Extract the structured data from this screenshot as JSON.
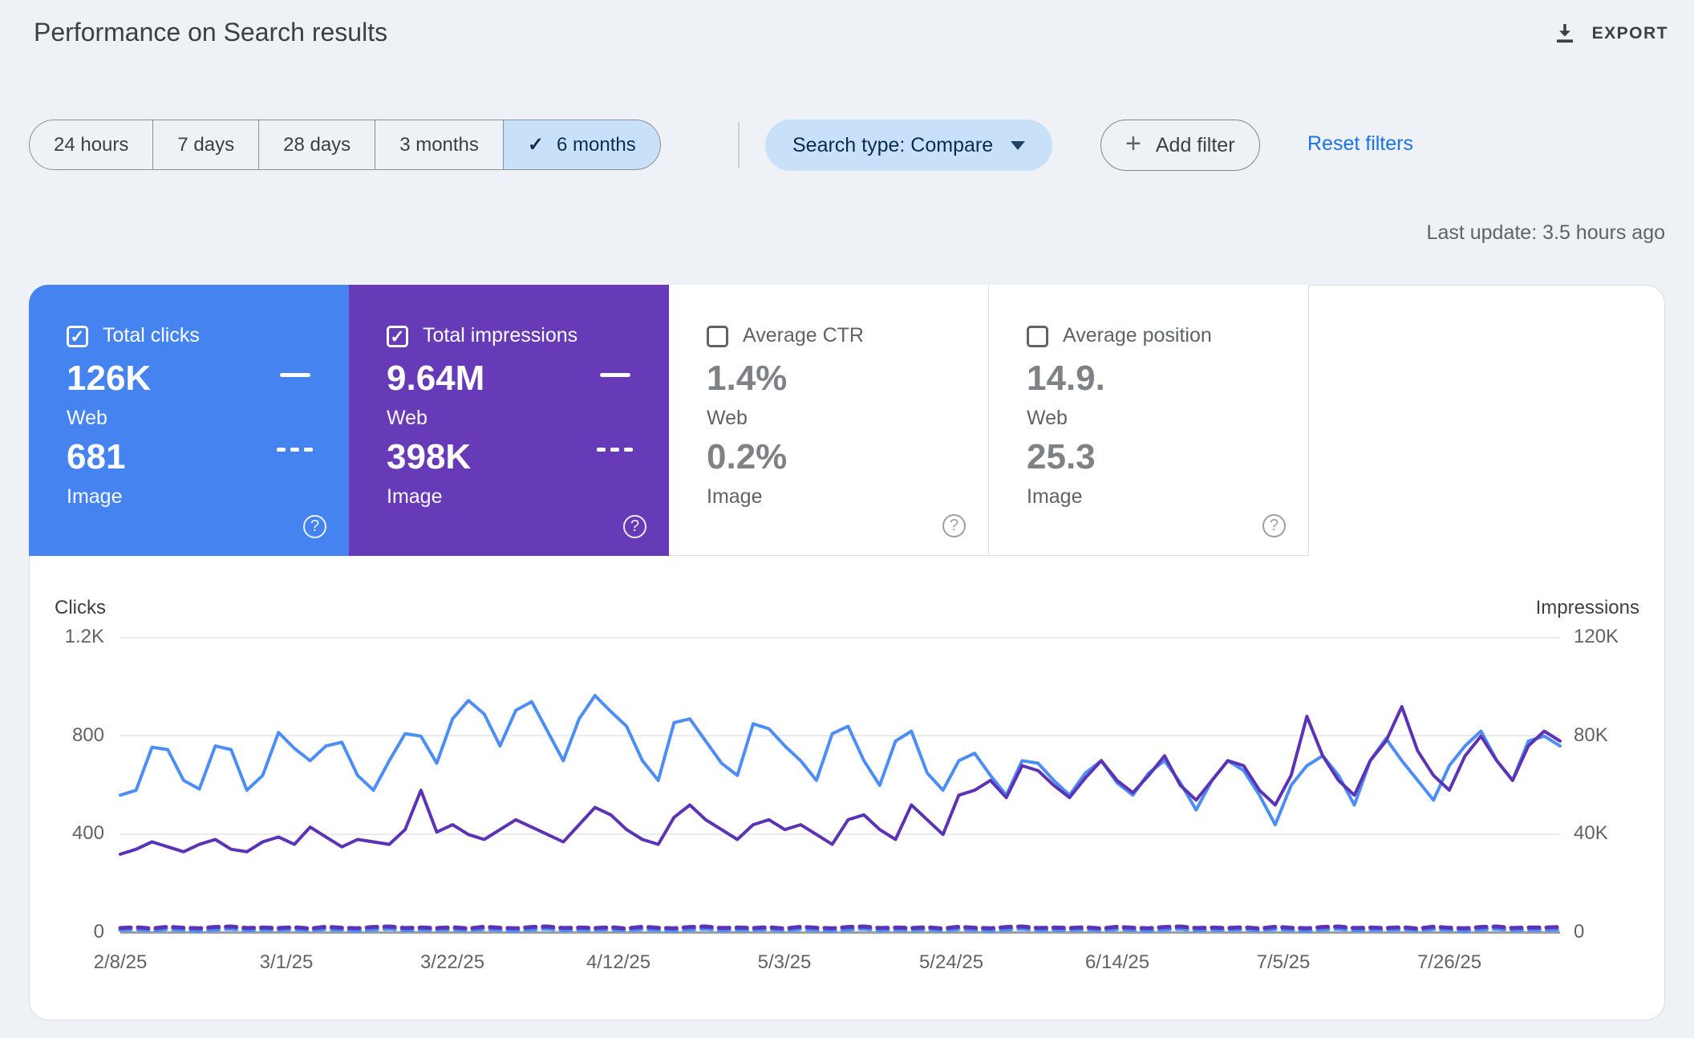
{
  "header": {
    "title": "Performance on Search results",
    "export_label": "EXPORT"
  },
  "filters": {
    "date_chips": [
      {
        "label": "24 hours",
        "selected": false
      },
      {
        "label": "7 days",
        "selected": false
      },
      {
        "label": "28 days",
        "selected": false
      },
      {
        "label": "3 months",
        "selected": false
      },
      {
        "label": "6 months",
        "selected": true
      }
    ],
    "selected_checkmark": "✓",
    "search_type_label": "Search type: Compare",
    "add_filter_label": "Add filter",
    "reset_filters_label": "Reset filters"
  },
  "status": {
    "last_update": "Last update: 3.5 hours ago"
  },
  "cards": [
    {
      "label": "Total clicks",
      "checked": true,
      "value_web": "126K",
      "sub_web": "Web",
      "value_image": "681",
      "sub_image": "Image",
      "bg": "#4584F0"
    },
    {
      "label": "Total impressions",
      "checked": true,
      "value_web": "9.64M",
      "sub_web": "Web",
      "value_image": "398K",
      "sub_image": "Image",
      "bg": "#673AB7"
    },
    {
      "label": "Average CTR",
      "checked": false,
      "value_web": "1.4%",
      "sub_web": "Web",
      "value_image": "0.2%",
      "sub_image": "Image",
      "bg": "#FFFFFF"
    },
    {
      "label": "Average position",
      "checked": false,
      "value_web": "14.9.",
      "sub_web": "Web",
      "value_image": "25.3",
      "sub_image": "Image",
      "bg": "#FFFFFF"
    }
  ],
  "chart_data": {
    "type": "line",
    "left_axis": {
      "title": "Clicks",
      "ticks": [
        "1.2K",
        "800",
        "400",
        "0"
      ],
      "range": [
        0,
        1200
      ]
    },
    "right_axis": {
      "title": "Impressions",
      "ticks": [
        "120K",
        "80K",
        "40K",
        "0"
      ],
      "range": [
        0,
        120
      ],
      "unit": "K"
    },
    "x_ticks": [
      "2/8/25",
      "3/1/25",
      "3/22/25",
      "4/12/25",
      "5/3/25",
      "5/24/25",
      "6/14/25",
      "7/5/25",
      "7/26/25"
    ],
    "x_tick_day_offsets": [
      0,
      21,
      42,
      63,
      84,
      105,
      126,
      147,
      168
    ],
    "x_total_days": 182,
    "grid": true,
    "legend": "none (metric cards act as legend)",
    "series": [
      {
        "name": "Web clicks",
        "axis": "left",
        "style": "solid",
        "color": "#4D8DF6",
        "values": [
          560,
          580,
          755,
          745,
          620,
          585,
          760,
          745,
          580,
          640,
          815,
          750,
          700,
          760,
          775,
          640,
          580,
          700,
          810,
          800,
          690,
          870,
          945,
          890,
          760,
          905,
          940,
          820,
          700,
          870,
          965,
          900,
          840,
          700,
          620,
          855,
          870,
          780,
          690,
          640,
          850,
          830,
          760,
          700,
          620,
          810,
          840,
          700,
          600,
          780,
          820,
          650,
          580,
          700,
          730,
          640,
          560,
          700,
          690,
          620,
          560,
          650,
          700,
          610,
          560,
          650,
          700,
          610,
          500,
          620,
          700,
          660,
          560,
          440,
          600,
          680,
          720,
          640,
          520,
          700,
          790,
          700,
          620,
          540,
          680,
          760,
          820,
          700,
          620,
          780,
          800,
          760
        ]
      },
      {
        "name": "Web impressions",
        "axis": "right",
        "style": "solid",
        "color": "#5C33B5",
        "values": [
          32,
          34,
          37,
          35,
          33,
          36,
          38,
          34,
          33,
          37,
          39,
          36,
          43,
          39,
          35,
          38,
          37,
          36,
          42,
          58,
          41,
          44,
          40,
          38,
          42,
          46,
          43,
          40,
          37,
          44,
          51,
          48,
          42,
          38,
          36,
          47,
          52,
          46,
          42,
          38,
          44,
          46,
          42,
          44,
          40,
          36,
          46,
          48,
          42,
          38,
          52,
          46,
          40,
          56,
          58,
          62,
          55,
          68,
          66,
          60,
          55,
          63,
          70,
          62,
          57,
          64,
          72,
          60,
          54,
          62,
          70,
          68,
          58,
          52,
          64,
          88,
          72,
          62,
          56,
          70,
          78,
          92,
          74,
          64,
          58,
          72,
          80,
          70,
          62,
          76,
          82,
          78
        ]
      },
      {
        "name": "Image clicks",
        "axis": "left",
        "style": "dashed",
        "color": "#4D8DF6",
        "values": [
          12,
          15,
          10,
          16,
          12,
          9,
          14,
          17,
          11,
          13,
          12,
          15,
          10,
          16,
          12,
          9,
          14,
          17,
          11,
          13,
          12,
          15,
          10,
          16,
          12,
          9,
          14,
          17,
          11,
          13,
          12,
          15,
          10,
          16,
          12,
          9,
          14,
          17,
          11,
          13,
          12,
          15,
          10,
          16,
          12,
          9,
          14,
          17,
          11,
          13,
          12,
          15,
          10,
          16,
          12,
          9,
          14,
          17,
          11,
          13,
          12,
          15,
          10,
          16,
          12,
          9,
          14,
          17,
          11,
          13,
          12,
          15,
          10,
          16,
          12,
          9,
          14,
          17,
          11,
          13,
          12,
          15,
          10,
          16,
          12,
          9,
          14,
          17,
          11,
          13,
          12,
          14
        ]
      },
      {
        "name": "Image impressions",
        "axis": "right",
        "style": "dashed",
        "color": "#5C33B5",
        "values": [
          2.0,
          2.3,
          1.8,
          2.5,
          2.1,
          1.9,
          2.4,
          2.6,
          2.0,
          2.2,
          2.0,
          2.3,
          1.8,
          2.5,
          2.1,
          1.9,
          2.4,
          2.6,
          2.0,
          2.2,
          2.0,
          2.3,
          1.8,
          2.5,
          2.1,
          1.9,
          2.4,
          2.6,
          2.0,
          2.2,
          2.0,
          2.3,
          1.8,
          2.5,
          2.1,
          1.9,
          2.4,
          2.6,
          2.0,
          2.2,
          2.0,
          2.3,
          1.8,
          2.5,
          2.1,
          1.9,
          2.4,
          2.6,
          2.0,
          2.2,
          2.0,
          2.3,
          1.8,
          2.5,
          2.1,
          1.9,
          2.4,
          2.6,
          2.0,
          2.2,
          2.0,
          2.3,
          1.8,
          2.5,
          2.1,
          1.9,
          2.4,
          2.6,
          2.0,
          2.2,
          2.0,
          2.3,
          1.8,
          2.5,
          2.1,
          1.9,
          2.4,
          2.6,
          2.0,
          2.2,
          2.0,
          2.3,
          1.8,
          2.5,
          2.1,
          1.9,
          2.4,
          2.6,
          2.0,
          2.2,
          2.2,
          2.4
        ]
      }
    ]
  }
}
